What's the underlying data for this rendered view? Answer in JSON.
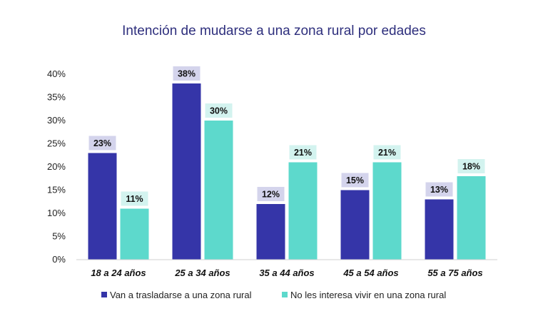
{
  "chart_data": {
    "type": "bar",
    "title": "Intención de mudarse a una zona rural por edades",
    "categories": [
      "18 a 24 años",
      "25 a 34 años",
      "35 a 44 años",
      "45 a 54 años",
      "55 a 75 años"
    ],
    "series": [
      {
        "name": "Van a trasladarse a una zona rural",
        "values": [
          23,
          38,
          12,
          15,
          13
        ],
        "labels": [
          "23%",
          "38%",
          "12%",
          "15%",
          "13%"
        ],
        "color": "#3535a8",
        "label_bg": "#d4d4ec"
      },
      {
        "name": "No les interesa vivir en una zona rural",
        "values": [
          11,
          30,
          21,
          21,
          18
        ],
        "labels": [
          "11%",
          "30%",
          "21%",
          "21%",
          "18%"
        ],
        "color": "#5dd9cc",
        "label_bg": "#d3f3ef"
      }
    ],
    "yticks": [
      "0%",
      "5%",
      "10%",
      "15%",
      "20%",
      "25%",
      "30%",
      "35%",
      "40%"
    ],
    "ylim": [
      0,
      40
    ],
    "grid": false,
    "legend_position": "bottom"
  }
}
